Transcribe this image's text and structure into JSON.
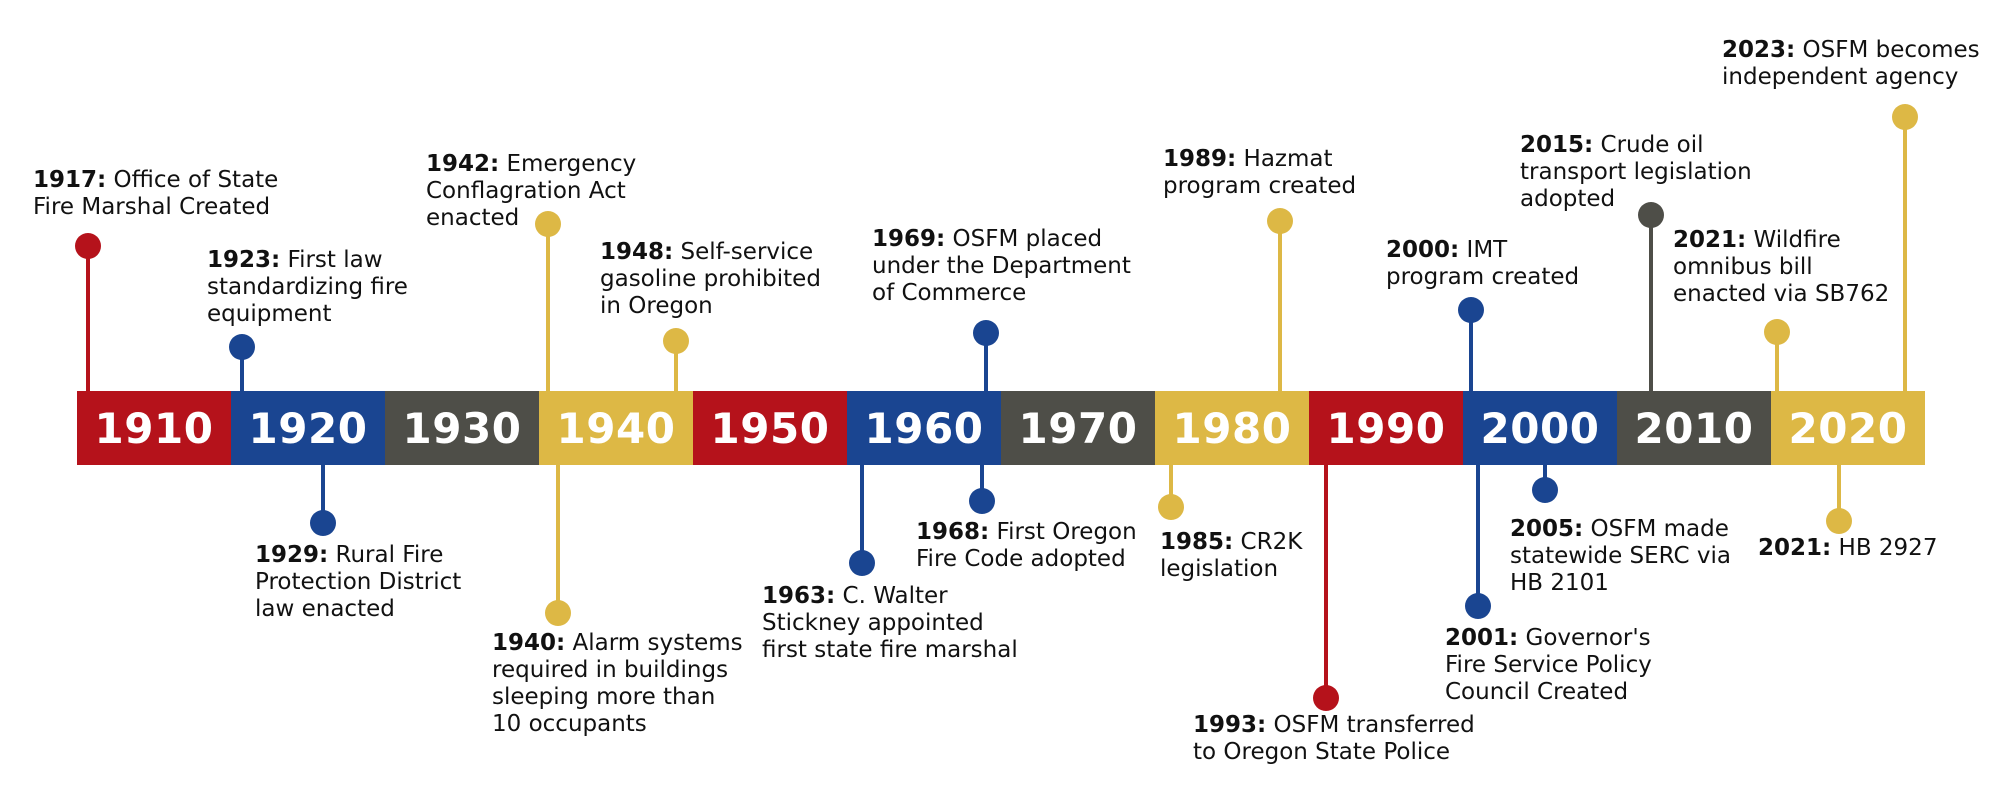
{
  "colors": {
    "red": "#b5121b",
    "blue": "#1a4591",
    "gray": "#4e4e48",
    "gold": "#ddb845"
  },
  "decades": [
    {
      "label": "1910",
      "color": "red"
    },
    {
      "label": "1920",
      "color": "blue"
    },
    {
      "label": "1930",
      "color": "gray"
    },
    {
      "label": "1940",
      "color": "gold"
    },
    {
      "label": "1950",
      "color": "red"
    },
    {
      "label": "1960",
      "color": "blue"
    },
    {
      "label": "1970",
      "color": "gray"
    },
    {
      "label": "1980",
      "color": "gold"
    },
    {
      "label": "1990",
      "color": "red"
    },
    {
      "label": "2000",
      "color": "blue"
    },
    {
      "label": "2010",
      "color": "gray"
    },
    {
      "label": "2020",
      "color": "gold"
    }
  ],
  "events": [
    {
      "year": "1917:",
      "lines": [
        " Office of State",
        "Fire Marshal Created"
      ],
      "color": "red"
    },
    {
      "year": "1923:",
      "lines": [
        " First law",
        "standardizing fire",
        "equipment"
      ],
      "color": "blue"
    },
    {
      "year": "1929:",
      "lines": [
        " Rural Fire",
        "Protection District",
        "law enacted"
      ],
      "color": "blue"
    },
    {
      "year": "1942:",
      "lines": [
        " Emergency",
        "Conflagration Act",
        "enacted"
      ],
      "color": "gold"
    },
    {
      "year": "1940:",
      "lines": [
        " Alarm systems",
        "required in buildings",
        "sleeping more than",
        "10 occupants"
      ],
      "color": "gold"
    },
    {
      "year": "1948:",
      "lines": [
        " Self-service",
        "gasoline prohibited",
        "in Oregon"
      ],
      "color": "gold"
    },
    {
      "year": "1963:",
      "lines": [
        " C. Walter",
        "Stickney appointed",
        "first state fire marshal"
      ],
      "color": "blue"
    },
    {
      "year": "1969:",
      "lines": [
        " OSFM placed",
        "under the Department",
        "of Commerce"
      ],
      "color": "blue"
    },
    {
      "year": "1968:",
      "lines": [
        " First Oregon",
        "Fire Code adopted"
      ],
      "color": "blue"
    },
    {
      "year": "1985:",
      "lines": [
        " CR2K",
        "legislation"
      ],
      "color": "gold"
    },
    {
      "year": "1989:",
      "lines": [
        " Hazmat",
        "program created"
      ],
      "color": "gold"
    },
    {
      "year": "1993:",
      "lines": [
        " OSFM transferred",
        "to Oregon State Police"
      ],
      "color": "red"
    },
    {
      "year": "2000:",
      "lines": [
        " IMT",
        "program created"
      ],
      "color": "blue"
    },
    {
      "year": "2001:",
      "lines": [
        " Governor's",
        "Fire Service Policy",
        "Council Created"
      ],
      "color": "blue"
    },
    {
      "year": "2005:",
      "lines": [
        " OSFM made",
        "statewide SERC via",
        "HB 2101"
      ],
      "color": "blue"
    },
    {
      "year": "2015:",
      "lines": [
        " Crude oil",
        "transport legislation",
        "adopted"
      ],
      "color": "gray"
    },
    {
      "year": "2021:",
      "lines": [
        " Wildfire",
        "omnibus bill",
        "enacted via SB762"
      ],
      "color": "gold"
    },
    {
      "year": "2021:",
      "lines": [
        " HB 2927"
      ],
      "color": "gold"
    },
    {
      "year": "2023:",
      "lines": [
        " OSFM becomes",
        "independent agency"
      ],
      "color": "gold"
    }
  ]
}
